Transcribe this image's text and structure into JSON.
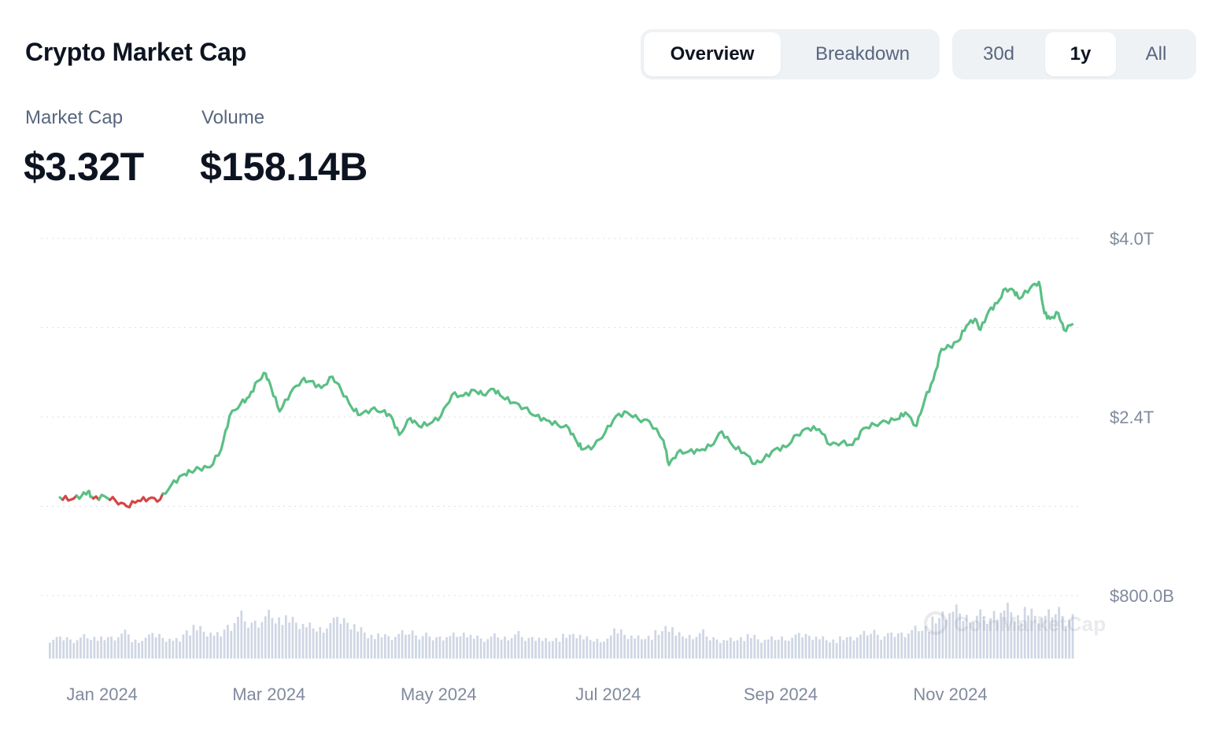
{
  "header": {
    "title": "Crypto Market Cap",
    "view_tabs": [
      {
        "label": "Overview",
        "active": true
      },
      {
        "label": "Breakdown",
        "active": false
      }
    ],
    "range_tabs": [
      {
        "label": "30d",
        "active": false
      },
      {
        "label": "1y",
        "active": true
      },
      {
        "label": "All",
        "active": false
      }
    ]
  },
  "stats": {
    "market_cap_label": "Market Cap",
    "market_cap_value": "$3.32T",
    "volume_label": "Volume",
    "volume_value": "$158.14B"
  },
  "watermark": "CoinMarketCap",
  "colors": {
    "up": "#5bbf85",
    "down": "#d64545",
    "volume_bar": "#cfd6e4",
    "grid": "#d9dde4",
    "axis_text": "#808a9d"
  },
  "chart_data": {
    "type": "line",
    "title": "",
    "xlabel": "",
    "ylabel": "",
    "ylim": [
      0.3,
      4.0
    ],
    "y_tick_labels": [
      {
        "value": 4.0,
        "label": "$4.0T"
      },
      {
        "value": 2.4,
        "label": "$2.4T"
      },
      {
        "value": 0.8,
        "label": "$800.0B"
      }
    ],
    "y_grid": [
      4.0,
      3.2,
      2.4,
      1.6,
      0.8
    ],
    "x_tick_labels": [
      {
        "date": "2024-01-01",
        "label": "Jan 2024"
      },
      {
        "date": "2024-03-01",
        "label": "Mar 2024"
      },
      {
        "date": "2024-05-01",
        "label": "May 2024"
      },
      {
        "date": "2024-07-01",
        "label": "Jul 2024"
      },
      {
        "date": "2024-09-01",
        "label": "Sep 2024"
      },
      {
        "date": "2024-11-01",
        "label": "Nov 2024"
      }
    ],
    "x_range": [
      "2023-12-27",
      "2024-12-30"
    ],
    "legend": "none",
    "grid": true,
    "series": [
      {
        "name": "Market Cap",
        "unit": "T USD",
        "color_rule": "green when above starting value, red when below",
        "baseline": 1.68,
        "points": [
          [
            "2023-12-31",
            1.68
          ],
          [
            "2024-01-04",
            1.66
          ],
          [
            "2024-01-08",
            1.7
          ],
          [
            "2024-01-10",
            1.73
          ],
          [
            "2024-01-12",
            1.67
          ],
          [
            "2024-01-16",
            1.69
          ],
          [
            "2024-01-20",
            1.65
          ],
          [
            "2024-01-24",
            1.6
          ],
          [
            "2024-01-28",
            1.65
          ],
          [
            "2024-02-01",
            1.67
          ],
          [
            "2024-02-05",
            1.66
          ],
          [
            "2024-02-09",
            1.79
          ],
          [
            "2024-02-13",
            1.88
          ],
          [
            "2024-02-16",
            1.91
          ],
          [
            "2024-02-19",
            1.94
          ],
          [
            "2024-02-23",
            1.95
          ],
          [
            "2024-02-27",
            2.11
          ],
          [
            "2024-03-01",
            2.41
          ],
          [
            "2024-03-05",
            2.52
          ],
          [
            "2024-03-08",
            2.58
          ],
          [
            "2024-03-11",
            2.72
          ],
          [
            "2024-03-14",
            2.79
          ],
          [
            "2024-03-16",
            2.66
          ],
          [
            "2024-03-19",
            2.45
          ],
          [
            "2024-03-23",
            2.62
          ],
          [
            "2024-03-27",
            2.73
          ],
          [
            "2024-03-30",
            2.72
          ],
          [
            "2024-04-03",
            2.66
          ],
          [
            "2024-04-07",
            2.76
          ],
          [
            "2024-04-10",
            2.65
          ],
          [
            "2024-04-14",
            2.48
          ],
          [
            "2024-04-17",
            2.42
          ],
          [
            "2024-04-21",
            2.47
          ],
          [
            "2024-04-25",
            2.45
          ],
          [
            "2024-04-28",
            2.41
          ],
          [
            "2024-05-01",
            2.24
          ],
          [
            "2024-05-05",
            2.39
          ],
          [
            "2024-05-08",
            2.32
          ],
          [
            "2024-05-12",
            2.34
          ],
          [
            "2024-05-16",
            2.41
          ],
          [
            "2024-05-20",
            2.6
          ],
          [
            "2024-05-24",
            2.59
          ],
          [
            "2024-05-28",
            2.64
          ],
          [
            "2024-05-31",
            2.6
          ],
          [
            "2024-06-04",
            2.65
          ],
          [
            "2024-06-07",
            2.58
          ],
          [
            "2024-06-11",
            2.53
          ],
          [
            "2024-06-15",
            2.48
          ],
          [
            "2024-06-19",
            2.41
          ],
          [
            "2024-06-23",
            2.37
          ],
          [
            "2024-06-27",
            2.33
          ],
          [
            "2024-07-01",
            2.3
          ],
          [
            "2024-07-04",
            2.17
          ],
          [
            "2024-07-06",
            2.11
          ],
          [
            "2024-07-10",
            2.14
          ],
          [
            "2024-07-14",
            2.26
          ],
          [
            "2024-07-18",
            2.41
          ],
          [
            "2024-07-22",
            2.44
          ],
          [
            "2024-07-26",
            2.38
          ],
          [
            "2024-07-30",
            2.36
          ],
          [
            "2024-08-04",
            2.19
          ],
          [
            "2024-08-06",
            1.97
          ],
          [
            "2024-08-09",
            2.08
          ],
          [
            "2024-08-13",
            2.09
          ],
          [
            "2024-08-17",
            2.1
          ],
          [
            "2024-08-21",
            2.14
          ],
          [
            "2024-08-25",
            2.27
          ],
          [
            "2024-08-29",
            2.14
          ],
          [
            "2024-09-02",
            2.08
          ],
          [
            "2024-09-06",
            1.98
          ],
          [
            "2024-09-09",
            2.02
          ],
          [
            "2024-09-13",
            2.11
          ],
          [
            "2024-09-17",
            2.13
          ],
          [
            "2024-09-21",
            2.24
          ],
          [
            "2024-09-25",
            2.3
          ],
          [
            "2024-09-29",
            2.29
          ],
          [
            "2024-10-03",
            2.15
          ],
          [
            "2024-10-07",
            2.17
          ],
          [
            "2024-10-11",
            2.15
          ],
          [
            "2024-10-15",
            2.3
          ],
          [
            "2024-10-19",
            2.33
          ],
          [
            "2024-10-23",
            2.36
          ],
          [
            "2024-10-27",
            2.38
          ],
          [
            "2024-10-30",
            2.44
          ],
          [
            "2024-11-03",
            2.32
          ],
          [
            "2024-11-06",
            2.56
          ],
          [
            "2024-11-09",
            2.73
          ],
          [
            "2024-11-12",
            3.01
          ],
          [
            "2024-11-15",
            3.03
          ],
          [
            "2024-11-18",
            3.08
          ],
          [
            "2024-11-21",
            3.22
          ],
          [
            "2024-11-24",
            3.28
          ],
          [
            "2024-11-26",
            3.18
          ],
          [
            "2024-11-29",
            3.35
          ],
          [
            "2024-12-02",
            3.42
          ],
          [
            "2024-12-05",
            3.55
          ],
          [
            "2024-12-08",
            3.53
          ],
          [
            "2024-12-10",
            3.46
          ],
          [
            "2024-12-14",
            3.56
          ],
          [
            "2024-12-17",
            3.61
          ],
          [
            "2024-12-19",
            3.33
          ],
          [
            "2024-12-21",
            3.28
          ],
          [
            "2024-12-24",
            3.33
          ],
          [
            "2024-12-26",
            3.18
          ],
          [
            "2024-12-29",
            3.23
          ]
        ]
      },
      {
        "name": "Volume",
        "type": "bar",
        "unit": "B USD",
        "values": [
          90,
          95,
          88,
          105,
          100,
          92,
          98,
          120,
          85,
          100,
          110,
          95,
          88,
          130,
          140,
          120,
          110,
          150,
          200,
          160,
          175,
          210,
          190,
          180,
          160,
          150,
          140,
          170,
          180,
          165,
          135,
          110,
          105,
          100,
          118,
          125,
          108,
          95,
          102,
          112,
          120,
          99,
          90,
          105,
          98,
          115,
          92,
          100,
          88,
          95,
          103,
          110,
          92,
          88,
          96,
          130,
          110,
          100,
          105,
          118,
          145,
          110,
          105,
          122,
          95,
          88,
          90,
          99,
          102,
          86,
          92,
          98,
          100,
          110,
          105,
          96,
          88,
          92,
          98,
          115,
          128,
          106,
          112,
          120,
          142,
          150,
          175,
          210,
          225,
          195,
          205,
          180,
          220,
          240,
          200,
          215,
          190,
          205,
          230,
          185
        ]
      }
    ]
  }
}
